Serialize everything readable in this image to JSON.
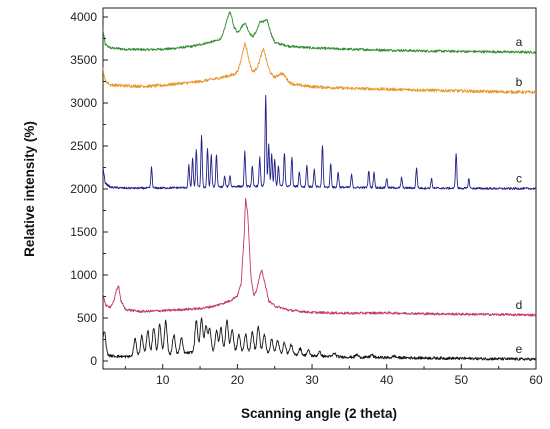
{
  "chart_data": {
    "type": "line",
    "xlabel": "Scanning angle (2 theta)",
    "ylabel": "Relative intensity (%)",
    "xlim": [
      2,
      60
    ],
    "ylim": [
      -80,
      4050
    ],
    "x_ticks": [
      "10",
      "20",
      "30",
      "40",
      "50",
      "60"
    ],
    "y_ticks": [
      "0",
      "500",
      "1000",
      "1500",
      "2000",
      "2500",
      "3000",
      "3500",
      "4000"
    ],
    "grid": false,
    "series": [
      {
        "name": "a",
        "color": "#2e8b2e",
        "points": [
          [
            2,
            3850
          ],
          [
            2.3,
            3680
          ],
          [
            3,
            3640
          ],
          [
            5,
            3625
          ],
          [
            8,
            3620
          ],
          [
            11,
            3630
          ],
          [
            14,
            3660
          ],
          [
            16,
            3700
          ],
          [
            17,
            3720
          ],
          [
            18,
            3740
          ],
          [
            19,
            3900
          ],
          [
            19.5,
            3780
          ],
          [
            20,
            3760
          ],
          [
            21,
            3820
          ],
          [
            21.5,
            3760
          ],
          [
            22,
            3740
          ],
          [
            23,
            3840
          ],
          [
            23.5,
            3800
          ],
          [
            24,
            3860
          ],
          [
            25,
            3700
          ],
          [
            27,
            3660
          ],
          [
            30,
            3640
          ],
          [
            35,
            3625
          ],
          [
            40,
            3615
          ],
          [
            45,
            3605
          ],
          [
            50,
            3600
          ],
          [
            55,
            3595
          ],
          [
            60,
            3590
          ]
        ],
        "peaks": [
          [
            19,
            160
          ],
          [
            21,
            110
          ],
          [
            23.5,
            140
          ]
        ]
      },
      {
        "name": "b",
        "color": "#e8962a",
        "points": [
          [
            2,
            3400
          ],
          [
            2.3,
            3260
          ],
          [
            3,
            3210
          ],
          [
            5,
            3200
          ],
          [
            8,
            3195
          ],
          [
            10,
            3205
          ],
          [
            12,
            3225
          ],
          [
            14,
            3240
          ],
          [
            15,
            3250
          ],
          [
            16,
            3265
          ],
          [
            17,
            3280
          ],
          [
            18,
            3300
          ],
          [
            19,
            3320
          ],
          [
            20,
            3340
          ],
          [
            20.5,
            3360
          ],
          [
            21,
            3460
          ],
          [
            21.5,
            3380
          ],
          [
            22,
            3340
          ],
          [
            22.5,
            3370
          ],
          [
            23,
            3390
          ],
          [
            23.5,
            3440
          ],
          [
            24,
            3350
          ],
          [
            25,
            3290
          ],
          [
            26,
            3250
          ],
          [
            28,
            3210
          ],
          [
            30,
            3190
          ],
          [
            35,
            3170
          ],
          [
            40,
            3160
          ],
          [
            45,
            3150
          ],
          [
            50,
            3140
          ],
          [
            55,
            3130
          ],
          [
            60,
            3125
          ]
        ],
        "peaks": [
          [
            21,
            230
          ],
          [
            23.5,
            180
          ],
          [
            26,
            90
          ]
        ]
      },
      {
        "name": "c",
        "color": "#22228a",
        "points": [
          [
            2,
            2250
          ],
          [
            2.3,
            2070
          ],
          [
            3,
            2020
          ],
          [
            5,
            2010
          ],
          [
            8,
            2010
          ],
          [
            10,
            2012
          ],
          [
            12,
            2015
          ],
          [
            15,
            2020
          ],
          [
            18,
            2025
          ],
          [
            20,
            2030
          ],
          [
            22,
            2030
          ],
          [
            24,
            2040
          ],
          [
            26,
            2035
          ],
          [
            28,
            2030
          ],
          [
            30,
            2025
          ],
          [
            33,
            2020
          ],
          [
            36,
            2018
          ],
          [
            40,
            2015
          ],
          [
            45,
            2010
          ],
          [
            50,
            2008
          ],
          [
            55,
            2005
          ],
          [
            60,
            2005
          ]
        ],
        "peaks": [
          [
            8.5,
            240
          ],
          [
            13.5,
            260
          ],
          [
            14,
            330
          ],
          [
            14.5,
            430
          ],
          [
            15.2,
            600
          ],
          [
            16,
            450
          ],
          [
            16.5,
            380
          ],
          [
            17.2,
            380
          ],
          [
            18.3,
            120
          ],
          [
            19,
            130
          ],
          [
            21,
            400
          ],
          [
            22,
            230
          ],
          [
            23,
            330
          ],
          [
            23.8,
            1050
          ],
          [
            24.2,
            480
          ],
          [
            24.6,
            360
          ],
          [
            25,
            300
          ],
          [
            25.5,
            230
          ],
          [
            26.3,
            380
          ],
          [
            27.3,
            340
          ],
          [
            28.3,
            180
          ],
          [
            29.3,
            250
          ],
          [
            30.3,
            200
          ],
          [
            31.4,
            480
          ],
          [
            32.5,
            280
          ],
          [
            33.5,
            180
          ],
          [
            35.3,
            150
          ],
          [
            37.6,
            200
          ],
          [
            38.3,
            180
          ],
          [
            40,
            110
          ],
          [
            42,
            120
          ],
          [
            44,
            240
          ],
          [
            46,
            110
          ],
          [
            49.3,
            400
          ],
          [
            51,
            110
          ]
        ]
      },
      {
        "name": "d",
        "color": "#c03a62",
        "points": [
          [
            2,
            780
          ],
          [
            2.4,
            640
          ],
          [
            3,
            630
          ],
          [
            3.5,
            700
          ],
          [
            3.8,
            830
          ],
          [
            4.1,
            870
          ],
          [
            4.4,
            700
          ],
          [
            5,
            600
          ],
          [
            7,
            575
          ],
          [
            10,
            585
          ],
          [
            13,
            600
          ],
          [
            15,
            610
          ],
          [
            17,
            640
          ],
          [
            18,
            670
          ],
          [
            19,
            700
          ],
          [
            20,
            760
          ],
          [
            20.5,
            900
          ],
          [
            20.9,
            1450
          ],
          [
            21.1,
            1900
          ],
          [
            21.4,
            1700
          ],
          [
            21.8,
            1000
          ],
          [
            22.2,
            760
          ],
          [
            22.6,
            820
          ],
          [
            23,
            1000
          ],
          [
            23.3,
            1050
          ],
          [
            23.7,
            900
          ],
          [
            24.2,
            700
          ],
          [
            25,
            640
          ],
          [
            27,
            590
          ],
          [
            30,
            565
          ],
          [
            35,
            555
          ],
          [
            40,
            560
          ],
          [
            45,
            550
          ],
          [
            50,
            545
          ],
          [
            55,
            540
          ],
          [
            60,
            535
          ]
        ],
        "peaks": []
      },
      {
        "name": "e",
        "color": "#151515",
        "points": [
          [
            2,
            120
          ],
          [
            2.3,
            80
          ],
          [
            3,
            60
          ],
          [
            5,
            50
          ],
          [
            6,
            55
          ],
          [
            7,
            60
          ],
          [
            8,
            70
          ],
          [
            9,
            80
          ],
          [
            10,
            85
          ],
          [
            11,
            80
          ],
          [
            12,
            80
          ],
          [
            13,
            90
          ],
          [
            14,
            100
          ],
          [
            15,
            110
          ],
          [
            16,
            110
          ],
          [
            17,
            100
          ],
          [
            18,
            110
          ],
          [
            19,
            120
          ],
          [
            20,
            110
          ],
          [
            21,
            100
          ],
          [
            22,
            100
          ],
          [
            23,
            110
          ],
          [
            24,
            100
          ],
          [
            25,
            90
          ],
          [
            27,
            80
          ],
          [
            28,
            70
          ],
          [
            30,
            60
          ],
          [
            33,
            50
          ],
          [
            35,
            45
          ],
          [
            40,
            40
          ],
          [
            45,
            35
          ],
          [
            50,
            30
          ],
          [
            55,
            25
          ],
          [
            60,
            20
          ]
        ],
        "peaks": [
          [
            2.2,
            250
          ],
          [
            6.3,
            200
          ],
          [
            7.2,
            230
          ],
          [
            8,
            280
          ],
          [
            8.8,
            310
          ],
          [
            9.6,
            340
          ],
          [
            10.4,
            380
          ],
          [
            11.5,
            220
          ],
          [
            12.5,
            180
          ],
          [
            14.5,
            360
          ],
          [
            15.2,
            380
          ],
          [
            15.8,
            300
          ],
          [
            16.3,
            260
          ],
          [
            17.2,
            250
          ],
          [
            17.8,
            280
          ],
          [
            18.6,
            360
          ],
          [
            19.3,
            250
          ],
          [
            20.2,
            200
          ],
          [
            21.1,
            210
          ],
          [
            22,
            230
          ],
          [
            22.8,
            290
          ],
          [
            23.6,
            200
          ],
          [
            24.6,
            160
          ],
          [
            25.4,
            150
          ],
          [
            26.3,
            130
          ],
          [
            27.2,
            110
          ],
          [
            28.4,
            80
          ],
          [
            29.5,
            60
          ],
          [
            31,
            50
          ],
          [
            33,
            40
          ],
          [
            36,
            30
          ],
          [
            38,
            30
          ],
          [
            41,
            20
          ]
        ]
      }
    ]
  }
}
